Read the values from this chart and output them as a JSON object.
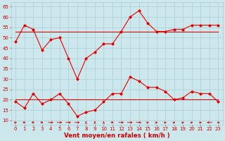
{
  "bg_color": "#cce8ec",
  "grid_color": "#aacdd4",
  "line_light": "#f4a0a0",
  "line_dark": "#dd0000",
  "xlabel": "Vent moyen/en rafales ( km/h )",
  "xlabel_color": "#cc0000",
  "xlabel_fontsize": 6.2,
  "tick_color": "#cc0000",
  "tick_fontsize": 5.0,
  "ylim": [
    8,
    67
  ],
  "yticks": [
    10,
    15,
    20,
    25,
    30,
    35,
    40,
    45,
    50,
    55,
    60,
    65
  ],
  "xticks": [
    0,
    1,
    2,
    3,
    4,
    5,
    6,
    7,
    8,
    9,
    10,
    11,
    12,
    13,
    14,
    15,
    16,
    17,
    18,
    19,
    20,
    21,
    22,
    23
  ],
  "hours": [
    0,
    1,
    2,
    3,
    4,
    5,
    6,
    7,
    8,
    9,
    10,
    11,
    12,
    13,
    14,
    15,
    16,
    17,
    18,
    19,
    20,
    21,
    22,
    23
  ],
  "rafales_light": [
    48,
    56,
    54,
    44,
    49,
    50,
    40,
    30,
    40,
    43,
    47,
    47,
    53,
    60,
    63,
    57,
    53,
    53,
    54,
    54,
    56,
    56,
    56,
    56
  ],
  "rafales_flat": [
    53,
    53,
    53,
    53,
    53,
    53,
    53,
    53,
    53,
    53,
    53,
    53,
    53,
    53,
    53,
    53,
    53,
    53,
    53,
    53,
    53,
    53,
    53,
    53
  ],
  "vent_dark": [
    19,
    16,
    23,
    18,
    20,
    23,
    18,
    12,
    14,
    15,
    19,
    23,
    23,
    31,
    29,
    26,
    26,
    24,
    20,
    21,
    24,
    23,
    23,
    19
  ],
  "vent_flat": [
    20,
    20,
    20,
    20,
    20,
    20,
    20,
    20,
    20,
    20,
    20,
    20,
    20,
    20,
    20,
    20,
    20,
    20,
    20,
    20,
    20,
    20,
    20,
    20
  ],
  "arrow_angles": [
    45,
    135,
    135,
    135,
    90,
    90,
    90,
    90,
    0,
    0,
    0,
    135,
    90,
    90,
    90,
    45,
    45,
    45,
    45,
    45,
    45,
    45,
    270,
    315
  ]
}
